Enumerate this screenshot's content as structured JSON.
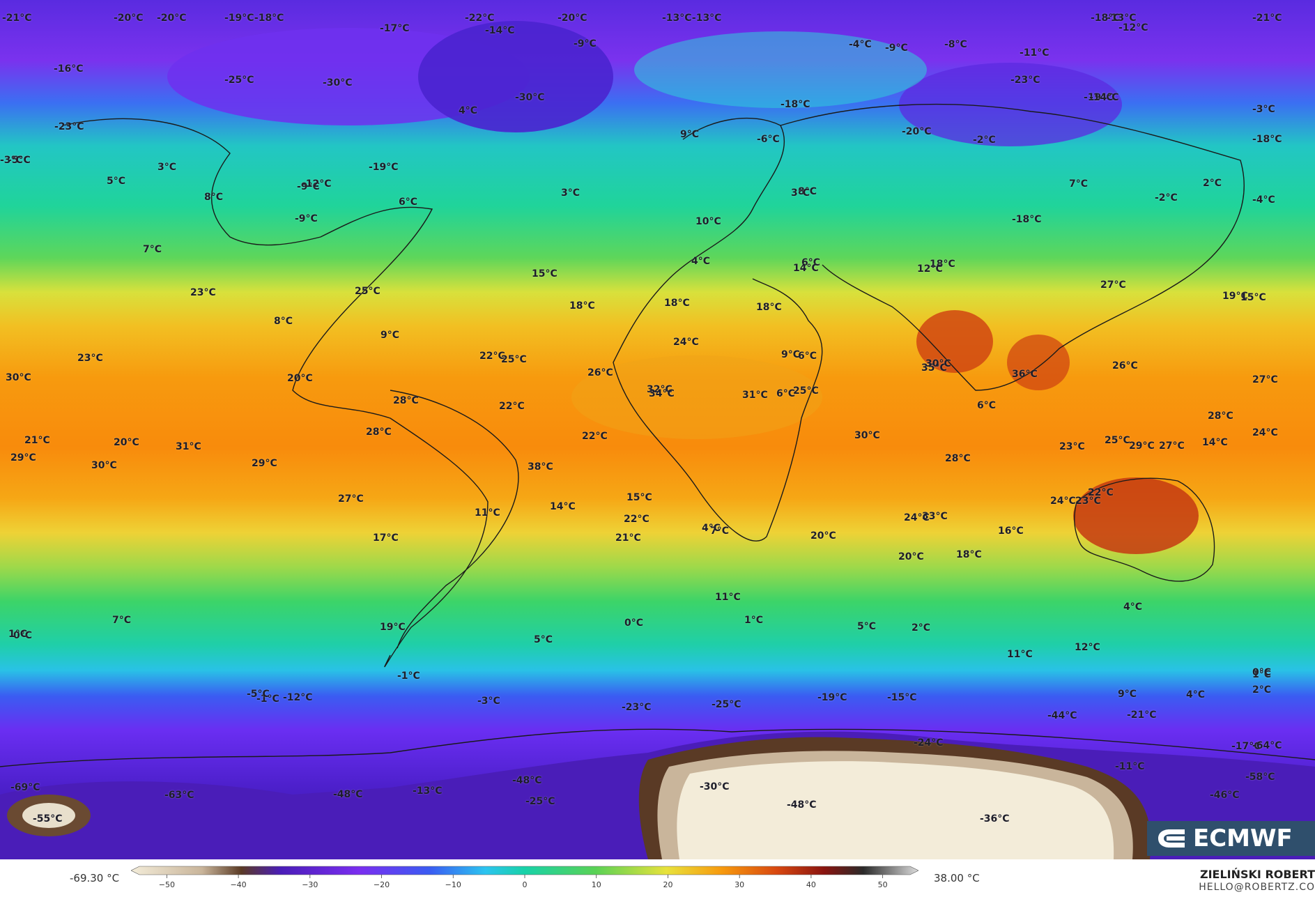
{
  "map": {
    "colors": {
      "deep_cold": "#f3ecd9",
      "very_cold": "#5a3a25",
      "cold_purple": "#4b1fc9",
      "violet": "#7b2ef0",
      "blue": "#3a5cf2",
      "cyan": "#2cc4f0",
      "teal": "#18d2a8",
      "green": "#5ad255",
      "yellow": "#e8e23c",
      "orange": "#f79a0e",
      "red": "#d84810",
      "dark_red": "#a81d10"
    },
    "temperature_labels": [
      {
        "text": "-21°C"
      },
      {
        "text": "-20°C"
      },
      {
        "text": "-20°C"
      },
      {
        "text": "-19°C-18°C"
      },
      {
        "text": "-17°C"
      },
      {
        "text": "-22°C"
      },
      {
        "text": "-14°C"
      },
      {
        "text": "-20°C"
      },
      {
        "text": "-9°C"
      },
      {
        "text": "-13°C-13°C"
      },
      {
        "text": "-13°C"
      },
      {
        "text": "-18°C"
      },
      {
        "text": "-12°C"
      },
      {
        "text": "-21°C"
      },
      {
        "text": "-4°C"
      },
      {
        "text": "-9°C"
      },
      {
        "text": "-8°C"
      },
      {
        "text": "-11°C"
      },
      {
        "text": "-16°C"
      },
      {
        "text": "-25°C"
      },
      {
        "text": "-30°C"
      },
      {
        "text": "-30°C"
      },
      {
        "text": "-23°C"
      },
      {
        "text": "-19°C"
      },
      {
        "text": "-3°C"
      },
      {
        "text": "4°C"
      },
      {
        "text": "-18°C"
      },
      {
        "text": "-14°C"
      },
      {
        "text": "-23°C"
      },
      {
        "text": "-20°C"
      },
      {
        "text": "-2°C"
      },
      {
        "text": "9°C"
      },
      {
        "text": "-6°C"
      },
      {
        "text": "-18°C"
      },
      {
        "text": "-5°C"
      },
      {
        "text": "3°C"
      },
      {
        "text": "-3°C"
      },
      {
        "text": "-19°C"
      },
      {
        "text": "-9°C"
      },
      {
        "text": "5°C"
      },
      {
        "text": "8°C"
      },
      {
        "text": "-12°C"
      },
      {
        "text": "6°C"
      },
      {
        "text": "8°C"
      },
      {
        "text": "2°C"
      },
      {
        "text": "7°C"
      },
      {
        "text": "-2°C"
      },
      {
        "text": "-4°C"
      },
      {
        "text": "3°C"
      },
      {
        "text": "3°C"
      },
      {
        "text": "-9°C"
      },
      {
        "text": "-18°C"
      },
      {
        "text": "10°C"
      },
      {
        "text": "7°C"
      },
      {
        "text": "6°C"
      },
      {
        "text": "4°C"
      },
      {
        "text": "14°C"
      },
      {
        "text": "18°C"
      },
      {
        "text": "15°C"
      },
      {
        "text": "12°C"
      },
      {
        "text": "27°C"
      },
      {
        "text": "19°C"
      },
      {
        "text": "15°C"
      },
      {
        "text": "23°C"
      },
      {
        "text": "25°C"
      },
      {
        "text": "18°C"
      },
      {
        "text": "18°C"
      },
      {
        "text": "18°C"
      },
      {
        "text": "8°C"
      },
      {
        "text": "6°C"
      },
      {
        "text": "24°C"
      },
      {
        "text": "9°C"
      },
      {
        "text": "9°C"
      },
      {
        "text": "23°C"
      },
      {
        "text": "22°C"
      },
      {
        "text": "25°C"
      },
      {
        "text": "35°C"
      },
      {
        "text": "36°C"
      },
      {
        "text": "26°C"
      },
      {
        "text": "27°C"
      },
      {
        "text": "30°C"
      },
      {
        "text": "20°C"
      },
      {
        "text": "26°C"
      },
      {
        "text": "32°C"
      },
      {
        "text": "31°C"
      },
      {
        "text": "6°C"
      },
      {
        "text": "28°C"
      },
      {
        "text": "22°C"
      },
      {
        "text": "34°C"
      },
      {
        "text": "25°C"
      },
      {
        "text": "6°C"
      },
      {
        "text": "30°C"
      },
      {
        "text": "28°C"
      },
      {
        "text": "25°C"
      },
      {
        "text": "28°C"
      },
      {
        "text": "21°C"
      },
      {
        "text": "20°C"
      },
      {
        "text": "14°C"
      },
      {
        "text": "22°C"
      },
      {
        "text": "31°C"
      },
      {
        "text": "30°C"
      },
      {
        "text": "29°C"
      },
      {
        "text": "27°C"
      },
      {
        "text": "29°C"
      },
      {
        "text": "30°C"
      },
      {
        "text": "29°C"
      },
      {
        "text": "23°C"
      },
      {
        "text": "24°C"
      },
      {
        "text": "28°C"
      },
      {
        "text": "38°C"
      },
      {
        "text": "33°C"
      },
      {
        "text": "27°C"
      },
      {
        "text": "15°C"
      },
      {
        "text": "11°C"
      },
      {
        "text": "22°C"
      },
      {
        "text": "24°C"
      },
      {
        "text": "23°C"
      },
      {
        "text": "22°C"
      },
      {
        "text": "24°C"
      },
      {
        "text": "7°C"
      },
      {
        "text": "4°C"
      },
      {
        "text": "20°C"
      },
      {
        "text": "21°C"
      },
      {
        "text": "17°C"
      },
      {
        "text": "16°C"
      },
      {
        "text": "20°C"
      },
      {
        "text": "18°C"
      },
      {
        "text": "14°C"
      },
      {
        "text": "19°C"
      },
      {
        "text": "11°C"
      },
      {
        "text": "11°C"
      },
      {
        "text": "5°C"
      },
      {
        "text": "12°C"
      },
      {
        "text": "9°C"
      },
      {
        "text": "4°C"
      },
      {
        "text": "4°C"
      },
      {
        "text": "0°C"
      },
      {
        "text": "7°C"
      },
      {
        "text": "1°C"
      },
      {
        "text": "5°C"
      },
      {
        "text": "1°C"
      },
      {
        "text": "2°C"
      },
      {
        "text": "2°C"
      },
      {
        "text": "1°C"
      },
      {
        "text": "0°C"
      },
      {
        "text": "-1°C"
      },
      {
        "text": "-5°C"
      },
      {
        "text": "-1°C"
      },
      {
        "text": "0°C"
      },
      {
        "text": "-12°C"
      },
      {
        "text": "-3°C"
      },
      {
        "text": "-23°C"
      },
      {
        "text": "-25°C"
      },
      {
        "text": "-19°C"
      },
      {
        "text": "-15°C"
      },
      {
        "text": "-44°C"
      },
      {
        "text": "-21°C"
      },
      {
        "text": "-24°C"
      },
      {
        "text": "-11°C"
      },
      {
        "text": "-17°C"
      },
      {
        "text": "-64°C"
      },
      {
        "text": "-69°C"
      },
      {
        "text": "-63°C"
      },
      {
        "text": "-48°C"
      },
      {
        "text": "-13°C"
      },
      {
        "text": "-48°C"
      },
      {
        "text": "-25°C"
      },
      {
        "text": "-30°C"
      },
      {
        "text": "-48°C"
      },
      {
        "text": "-36°C"
      },
      {
        "text": "-46°C"
      },
      {
        "text": "-58°C"
      },
      {
        "text": "-55°C"
      }
    ]
  },
  "logo": {
    "text": "ECMWF"
  },
  "legend": {
    "min_label": "-69.30 °C",
    "max_label": "38.00 °C",
    "ticks": [
      "−50",
      "−40",
      "−30",
      "−20",
      "−10",
      "0",
      "10",
      "20",
      "30",
      "40",
      "50"
    ],
    "tick_values": [
      -50,
      -40,
      -30,
      -20,
      -10,
      0,
      10,
      20,
      30,
      40,
      50
    ],
    "range": [
      -55,
      55
    ]
  },
  "credit": {
    "name": "ZIELIŃSKI ROBERT",
    "email": "HELLO@ROBERTZ.CO"
  }
}
